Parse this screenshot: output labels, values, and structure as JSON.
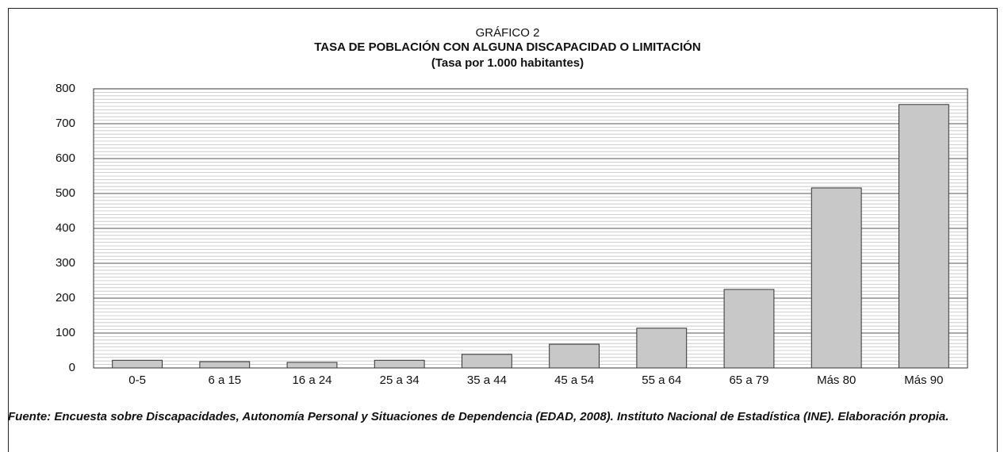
{
  "chart_data": {
    "type": "bar",
    "title": "GRÁFICO 2",
    "subtitle": "TASA DE POBLACIÓN CON ALGUNA DISCAPACIDAD O LIMITACIÓN",
    "unit_label": "(Tasa por 1.000 habitantes)",
    "categories": [
      "0-5",
      "6 a 15",
      "16 a 24",
      "25 a 34",
      "35 a 44",
      "45 a 54",
      "55 a 64",
      "65 a 79",
      "Más 80",
      "Más 90"
    ],
    "values": [
      22,
      18,
      16,
      22,
      39,
      68,
      114,
      225,
      516,
      755
    ],
    "color": "#c8c8c8",
    "ylim": [
      0,
      800
    ],
    "yticks": [
      0,
      100,
      200,
      300,
      400,
      500,
      600,
      700,
      800
    ],
    "grid": true,
    "minor_grid": true,
    "source": "Fuente: Encuesta sobre Discapacidades, Autonomía Personal y Situaciones de Dependencia (EDAD, 2008). Instituto Nacional de Estadística (INE). Elaboración propia."
  }
}
